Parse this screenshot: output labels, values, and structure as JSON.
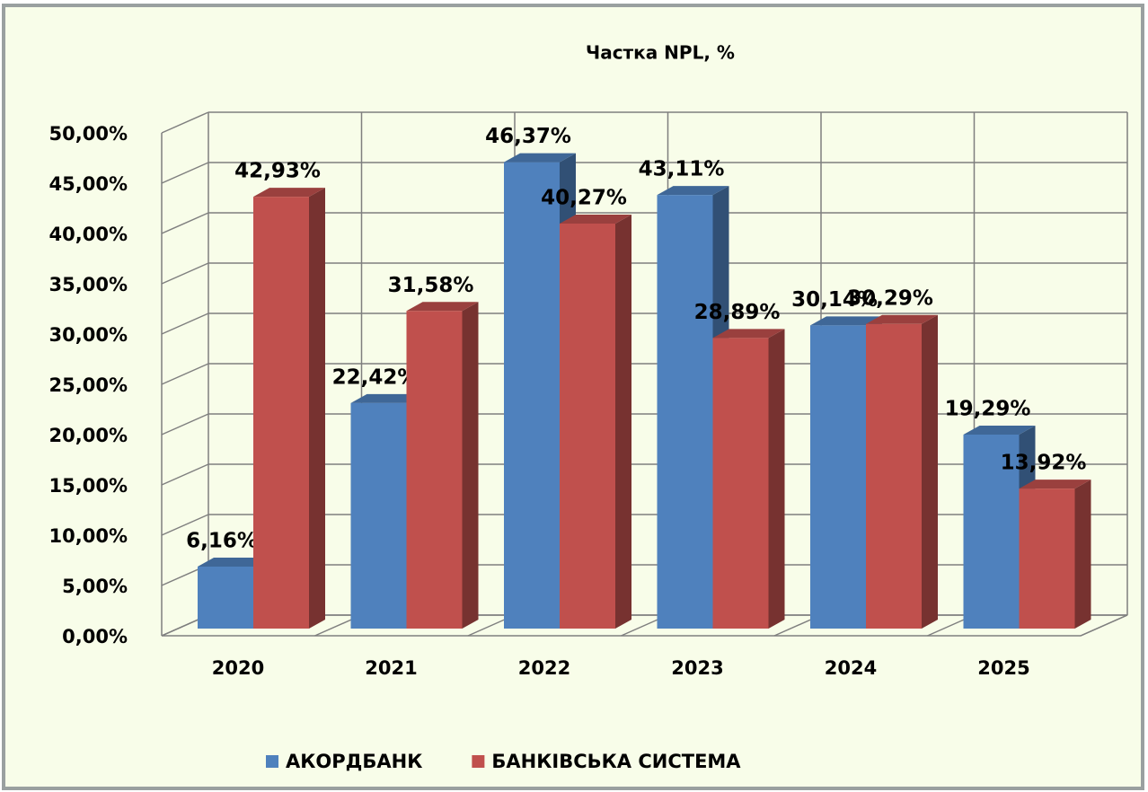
{
  "chart_data": {
    "type": "bar3d",
    "title": "Частка NPL, %",
    "categories": [
      "2020",
      "2021",
      "2022",
      "2023",
      "2024",
      "2025"
    ],
    "series": [
      {
        "name": "АКОРДБАНК",
        "color": "#4f81bd",
        "values": [
          6.16,
          22.42,
          46.37,
          43.11,
          30.14,
          19.29
        ],
        "value_labels": [
          "6,16%",
          "22,42%",
          "46,37%",
          "43,11%",
          "30,14%",
          "19,29%"
        ]
      },
      {
        "name": "БАНКІВСЬКА СИСТЕМА",
        "color": "#c0504d",
        "values": [
          42.93,
          31.58,
          40.27,
          28.89,
          30.29,
          13.92
        ],
        "value_labels": [
          "42,93%",
          "31,58%",
          "40,27%",
          "28,89%",
          "30,29%",
          "13,92%"
        ]
      }
    ],
    "ylim": [
      0,
      50
    ],
    "yticks": [
      {
        "value": 0,
        "label": "0,00%"
      },
      {
        "value": 5,
        "label": "5,00%"
      },
      {
        "value": 10,
        "label": "10,00%"
      },
      {
        "value": 15,
        "label": "15,00%"
      },
      {
        "value": 20,
        "label": "20,00%"
      },
      {
        "value": 25,
        "label": "25,00%"
      },
      {
        "value": 30,
        "label": "30,00%"
      },
      {
        "value": 35,
        "label": "35,00%"
      },
      {
        "value": 40,
        "label": "40,00%"
      },
      {
        "value": 45,
        "label": "45,00%"
      },
      {
        "value": 50,
        "label": "50,00%"
      }
    ],
    "grid": true,
    "legend": "bottom"
  }
}
